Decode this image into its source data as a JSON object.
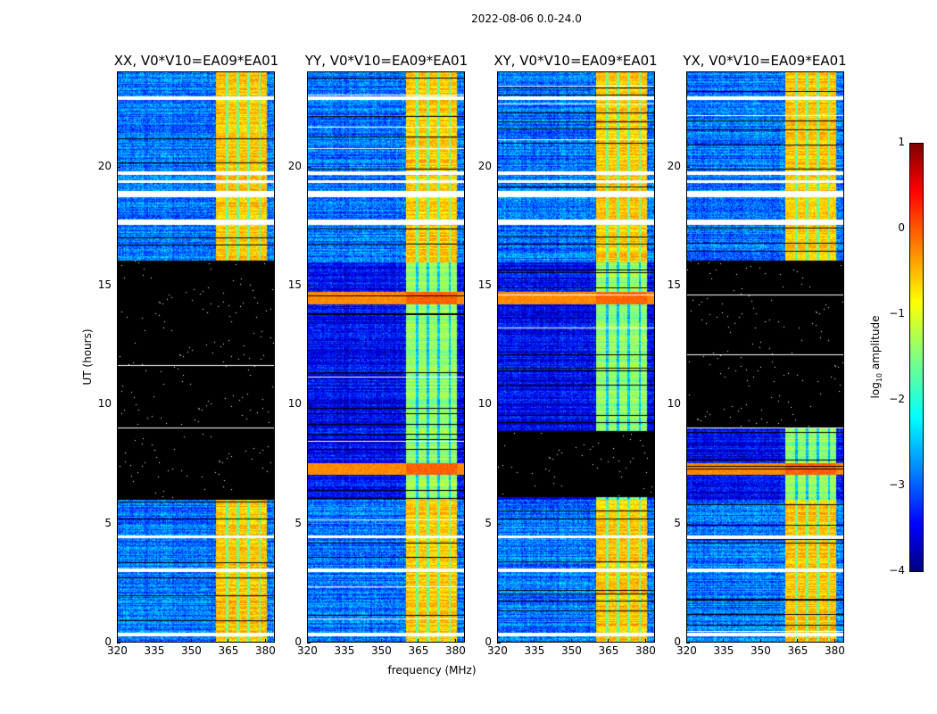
{
  "suptitle": "2022-08-06 0.0-24.0",
  "chart_data": {
    "type": "heatmap",
    "title": "2022-08-06 0.0-24.0",
    "xlabel": "frequency (MHz)",
    "ylabel": "UT (hours)",
    "xlim": [
      320,
      384
    ],
    "ylim": [
      0,
      24
    ],
    "xticks": [
      "320",
      "335",
      "350",
      "365",
      "380"
    ],
    "xtick_values": [
      320,
      335,
      350,
      365,
      380
    ],
    "yticks": [
      "0",
      "5",
      "10",
      "15",
      "20"
    ],
    "ytick_values": [
      0,
      5,
      10,
      15,
      20
    ],
    "colorbar": {
      "label_main": "log",
      "label_sub": "10",
      "label_rest": " amplitude",
      "range": [
        -4,
        1
      ],
      "ticks": [
        "1",
        "0",
        "−1",
        "−2",
        "−3",
        "−4"
      ],
      "tick_values": [
        1,
        0,
        -1,
        -2,
        -3,
        -4
      ],
      "colormap": "jet"
    },
    "rfi_band_mhz": [
      360,
      381
    ],
    "common_gap_hours": [
      [
        0.25,
        0.4
      ],
      [
        2.95,
        3.1
      ],
      [
        4.4,
        4.5
      ],
      [
        17.6,
        17.8
      ],
      [
        18.75,
        19.0
      ],
      [
        19.35,
        19.45
      ],
      [
        19.7,
        19.85
      ],
      [
        22.85,
        23.0
      ]
    ],
    "panels": [
      {
        "title": "XX, V0*V10=EA09*EA01",
        "flagged_hours": [
          [
            6.0,
            16.1
          ]
        ],
        "bright_rows_hours": []
      },
      {
        "title": "YY, V0*V10=EA09*EA01",
        "flagged_hours": [],
        "bright_rows_hours": [
          14.5,
          7.3
        ]
      },
      {
        "title": "XY, V0*V10=EA09*EA01",
        "flagged_hours": [
          [
            6.1,
            8.9
          ]
        ],
        "bright_rows_hours": [
          14.5
        ]
      },
      {
        "title": "YX, V0*V10=EA09*EA01",
        "flagged_hours": [
          [
            9.0,
            16.1
          ]
        ],
        "bright_rows_hours": [
          7.3
        ]
      }
    ]
  }
}
